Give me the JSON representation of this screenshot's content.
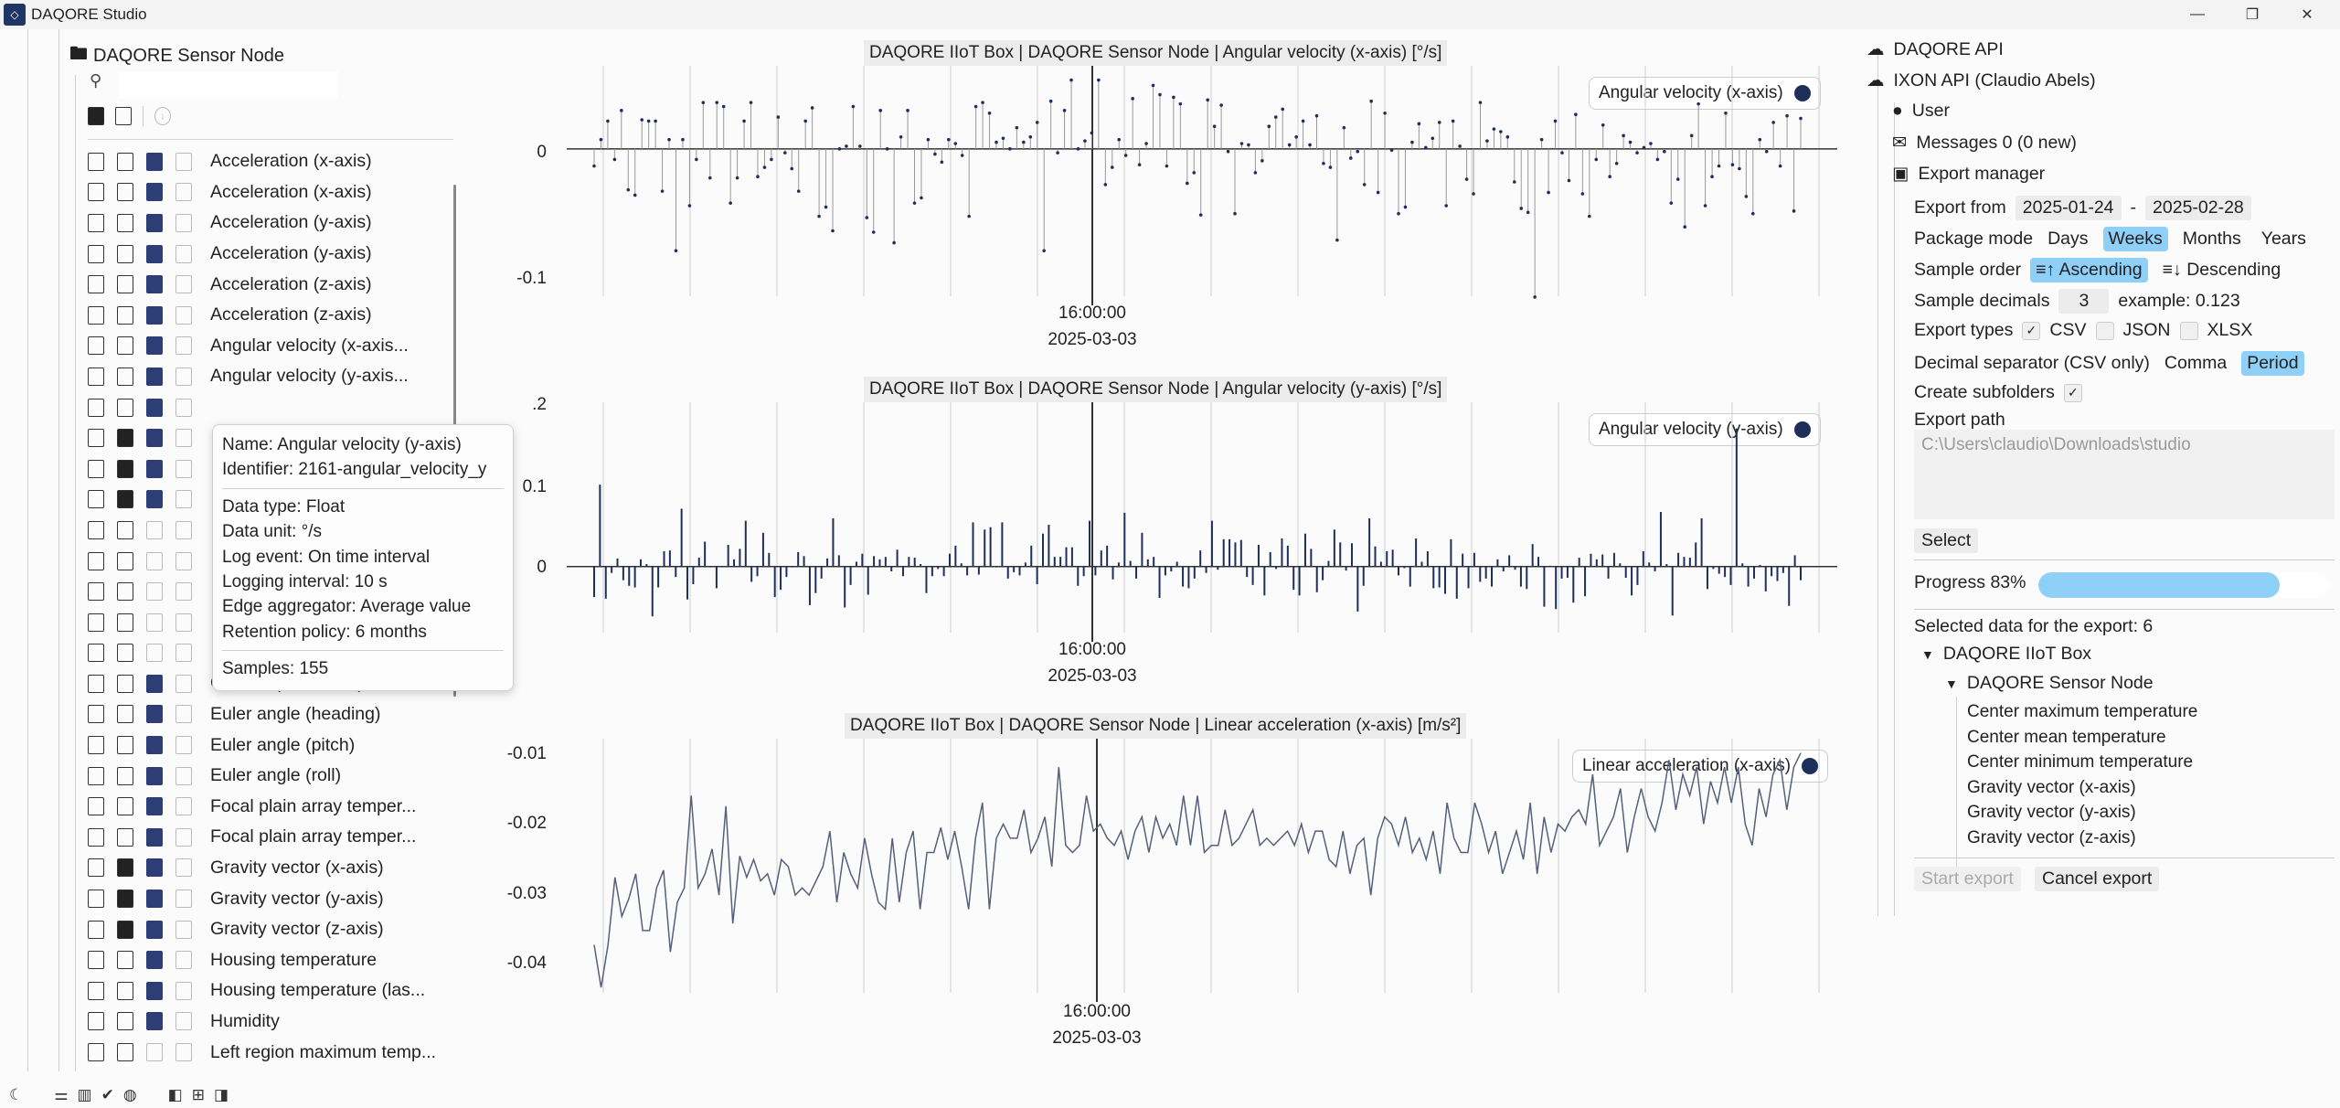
{
  "app": {
    "title": "DAQORE Studio"
  },
  "tree": {
    "root_label": "DAQORE Sensor Node",
    "search_placeholder": ""
  },
  "signals": [
    {
      "label": "Acceleration (x-axis)",
      "icons": [
        "doc",
        "doc",
        "blue",
        "gray"
      ]
    },
    {
      "label": "Acceleration (x-axis)",
      "icons": [
        "doc",
        "doc",
        "blue",
        "gray"
      ]
    },
    {
      "label": "Acceleration (y-axis)",
      "icons": [
        "doc",
        "doc",
        "blue",
        "gray"
      ]
    },
    {
      "label": "Acceleration (y-axis)",
      "icons": [
        "doc",
        "doc",
        "blue",
        "gray"
      ]
    },
    {
      "label": "Acceleration (z-axis)",
      "icons": [
        "doc",
        "doc",
        "blue",
        "gray"
      ]
    },
    {
      "label": "Acceleration (z-axis)",
      "icons": [
        "doc",
        "doc",
        "blue",
        "gray"
      ]
    },
    {
      "label": "Angular velocity (x-axis...",
      "icons": [
        "doc",
        "doc",
        "blue",
        "gray"
      ]
    },
    {
      "label": "Angular velocity (y-axis...",
      "icons": [
        "doc",
        "doc",
        "blue",
        "gray"
      ]
    },
    {
      "label": "",
      "icons": [
        "doc",
        "doc",
        "blue",
        "gray"
      ]
    },
    {
      "label": "",
      "icons": [
        "doc",
        "fill",
        "blue",
        "gray"
      ]
    },
    {
      "label": "",
      "icons": [
        "doc",
        "fill",
        "blue",
        "gray"
      ]
    },
    {
      "label": "",
      "icons": [
        "doc",
        "fill",
        "blue",
        "gray"
      ]
    },
    {
      "label": "",
      "icons": [
        "doc",
        "doc",
        "gray",
        "gray"
      ]
    },
    {
      "label": "",
      "icons": [
        "doc",
        "doc",
        "gray",
        "gray"
      ]
    },
    {
      "label": "",
      "icons": [
        "doc",
        "doc",
        "gray",
        "gray"
      ]
    },
    {
      "label": "",
      "icons": [
        "doc",
        "doc",
        "gray",
        "gray"
      ]
    },
    {
      "label": "",
      "icons": [
        "doc",
        "doc",
        "gray",
        "gray"
      ]
    },
    {
      "label": "Current (channel 1)",
      "icons": [
        "doc",
        "doc",
        "blue",
        "gray"
      ]
    },
    {
      "label": "Euler angle (heading)",
      "icons": [
        "doc",
        "doc",
        "blue",
        "gray"
      ]
    },
    {
      "label": "Euler angle (pitch)",
      "icons": [
        "doc",
        "doc",
        "blue",
        "gray"
      ]
    },
    {
      "label": "Euler angle (roll)",
      "icons": [
        "doc",
        "doc",
        "blue",
        "gray"
      ]
    },
    {
      "label": "Focal plain array temper...",
      "icons": [
        "doc",
        "doc",
        "blue",
        "gray"
      ]
    },
    {
      "label": "Focal plain array temper...",
      "icons": [
        "doc",
        "doc",
        "blue",
        "gray"
      ]
    },
    {
      "label": "Gravity vector (x-axis)",
      "icons": [
        "doc",
        "fill",
        "blue",
        "gray"
      ]
    },
    {
      "label": "Gravity vector (y-axis)",
      "icons": [
        "doc",
        "fill",
        "blue",
        "gray"
      ]
    },
    {
      "label": "Gravity vector (z-axis)",
      "icons": [
        "doc",
        "fill",
        "blue",
        "gray"
      ]
    },
    {
      "label": "Housing temperature",
      "icons": [
        "doc",
        "doc",
        "blue",
        "gray"
      ]
    },
    {
      "label": "Housing temperature (las...",
      "icons": [
        "doc",
        "doc",
        "blue",
        "gray"
      ]
    },
    {
      "label": "Humidity",
      "icons": [
        "doc",
        "doc",
        "blue",
        "gray"
      ]
    },
    {
      "label": "Left region maximum temp...",
      "icons": [
        "doc",
        "doc",
        "gray",
        "gray"
      ]
    }
  ],
  "tooltip": {
    "name": "Name: Angular velocity (y-axis)",
    "identifier": "Identifier: 2161-angular_velocity_y",
    "data_type": "Data type: Float",
    "data_unit": "Data unit: °/s",
    "log_event": "Log event: On time interval",
    "logging_interval": "Logging interval: 10 s",
    "edge_aggregator": "Edge aggregator: Average value",
    "retention_policy": "Retention policy: 6 months",
    "samples": "Samples: 155"
  },
  "charts": [
    {
      "title": "DAQORE IIoT Box | DAQORE Sensor Node | Angular velocity (x-axis) [°/s]",
      "legend": "Angular velocity (x-axis)",
      "xtick_time": "16:00:00",
      "xtick_date": "2025-03-03",
      "yticks": [
        "0",
        "-0.1"
      ]
    },
    {
      "title": "DAQORE IIoT Box | DAQORE Sensor Node | Angular velocity (y-axis) [°/s]",
      "legend": "Angular velocity (y-axis)",
      "xtick_time": "16:00:00",
      "xtick_date": "2025-03-03",
      "yticks": [
        ".2",
        "0.1",
        "0"
      ]
    },
    {
      "title": "DAQORE IIoT Box | DAQORE Sensor Node | Linear acceleration (x-axis) [m/s²]",
      "legend": "Linear acceleration (x-axis)",
      "xtick_time": "16:00:00",
      "xtick_date": "2025-03-03",
      "yticks": [
        "-0.01",
        "-0.02",
        "-0.03",
        "-0.04"
      ]
    }
  ],
  "chart_data": [
    {
      "type": "scatter",
      "title": "DAQORE IIoT Box | DAQORE Sensor Node | Angular velocity (x-axis) [°/s]",
      "xlabel": "",
      "ylabel": "",
      "ylim": [
        -0.11,
        0.06
      ],
      "series": [
        {
          "name": "Angular velocity (x-axis)",
          "values": [
            -0.013,
            0.007,
            0.021,
            -0.008,
            0.029,
            -0.031,
            -0.035,
            0.022,
            0.021,
            0.021,
            -0.032,
            0.007,
            -0.077,
            0.007,
            -0.043,
            -0.008,
            0.035,
            -0.022,
            0.035,
            0.032,
            -0.041,
            -0.022,
            0.021,
            0.035,
            -0.021,
            -0.014,
            -0.008,
            0.024,
            -0.003,
            -0.015,
            -0.032,
            0.021,
            0.031,
            -0.051,
            -0.044,
            -0.062,
            0.0,
            0.002,
            0.032,
            0.002,
            -0.052,
            -0.063,
            0.029,
            0.0,
            -0.071,
            0.009,
            0.029,
            -0.041,
            -0.037,
            0.007,
            -0.004,
            -0.01,
            0.007,
            0.004,
            -0.005,
            -0.051,
            0.032,
            0.035,
            0.027,
            0.005,
            0.008,
            0.0,
            0.016,
            0.005,
            0.009,
            0.02,
            -0.077,
            0.036,
            -0.003,
            0.029,
            0.052,
            0.0,
            0.006,
            0.012,
            0.052,
            -0.027,
            -0.014,
            0.007,
            -0.005,
            0.038,
            -0.012,
            0.004,
            0.048,
            0.041,
            -0.013,
            0.039,
            0.034,
            -0.026,
            -0.018,
            -0.05,
            0.037,
            0.017,
            0.033,
            -0.002,
            -0.049,
            0.004,
            0.003,
            -0.018,
            -0.009,
            0.017,
            0.024,
            0.03,
            0.003,
            0.009,
            0.021,
            0.003,
            0.025,
            -0.011,
            -0.014,
            -0.069,
            0.016,
            -0.007,
            -0.002,
            -0.027,
            0.036,
            -0.033,
            0.027,
            -0.001,
            -0.049,
            -0.044,
            0.005,
            0.019,
            0.001,
            0.008,
            0.02,
            -0.043,
            0.021,
            0.002,
            -0.023,
            -0.034,
            0.035,
            0.006,
            0.015,
            0.013,
            0.009,
            -0.025,
            -0.045,
            -0.048,
            -0.112,
            0.007,
            -0.033,
            0.021,
            -0.003,
            -0.024,
            0.026,
            -0.034,
            -0.051,
            -0.008,
            0.018,
            -0.021,
            -0.011,
            0.01,
            0.005,
            -0.003,
            0.001,
            0.004,
            -0.008,
            -0.002,
            -0.041,
            -0.023,
            -0.059,
            0.01,
            0.034,
            -0.043,
            -0.021,
            -0.013,
            0.027,
            -0.012,
            -0.015,
            -0.036,
            -0.049,
            0.007,
            -0.002,
            0.02,
            -0.013,
            0.025,
            -0.047,
            0.023
          ]
        }
      ]
    },
    {
      "type": "bar",
      "title": "DAQORE IIoT Box | DAQORE Sensor Node | Angular velocity (y-axis) [°/s]",
      "xlabel": "",
      "ylabel": "",
      "ylim": [
        -0.08,
        0.2
      ],
      "series": [
        {
          "name": "Angular velocity (y-axis)",
          "values": [
            -0.038,
            0.102,
            -0.04,
            -0.008,
            0.01,
            -0.017,
            -0.024,
            -0.026,
            0.009,
            0.003,
            -0.062,
            -0.026,
            0.019,
            0.02,
            -0.013,
            0.072,
            -0.041,
            -0.022,
            0.011,
            0.031,
            -0.001,
            -0.027,
            -0.001,
            0.027,
            0.009,
            0.022,
            0.057,
            -0.019,
            -0.012,
            0.042,
            0.017,
            -0.038,
            -0.029,
            -0.013,
            -0.001,
            0.018,
            0.013,
            -0.048,
            -0.033,
            -0.015,
            0.01,
            0.06,
            0.014,
            -0.051,
            -0.023,
            0.006,
            0.016,
            -0.035,
            0.013,
            0.009,
            0.012,
            -0.006,
            0.021,
            -0.012,
            0.012,
            0.011,
            0.003,
            -0.033,
            -0.012,
            -0.003,
            -0.012,
            0.016,
            0.026,
            0.004,
            -0.011,
            0.055,
            -0.01,
            0.046,
            0.049,
            -0.001,
            0.055,
            -0.015,
            -0.007,
            -0.011,
            0.005,
            0.026,
            -0.022,
            0.041,
            0.052,
            0.012,
            0.012,
            0.024,
            0.024,
            -0.024,
            -0.012,
            0.057,
            -0.011,
            0.02,
            0.026,
            -0.016,
            0.005,
            0.067,
            0.007,
            -0.015,
            0.042,
            0.009,
            0.012,
            -0.039,
            -0.011,
            -0.006,
            0.006,
            -0.025,
            -0.027,
            -0.015,
            0.02,
            -0.008,
            0.057,
            -0.004,
            0.034,
            0.034,
            0.03,
            0.033,
            -0.013,
            -0.023,
            0.027,
            -0.036,
            0.018,
            -0.003,
            0.035,
            0.026,
            -0.029,
            -0.036,
            0.041,
            0.022,
            -0.032,
            -0.017,
            0.007,
            0.046,
            0.03,
            -0.005,
            0.029,
            -0.056,
            -0.024,
            0.06,
            0.025,
            0.006,
            0.019,
            0.021,
            -0.011,
            -0.002,
            -0.025,
            0.035,
            0.006,
            0.019,
            -0.027,
            -0.026,
            -0.034,
            0.034,
            -0.04,
            0.016,
            -0.027,
            0.017,
            -0.019,
            -0.015,
            -0.025,
            0.009,
            -0.006,
            0.014,
            -0.004,
            -0.025,
            -0.028,
            0.028,
            0.012,
            -0.05,
            0.001,
            -0.053,
            -0.015,
            -0.014,
            -0.045,
            0.011,
            -0.037,
            0.016,
            0.009,
            0.015,
            -0.015,
            0.017,
            0.004,
            -0.014,
            -0.036,
            -0.023,
            0.019,
            0.005,
            -0.006,
            0.068,
            0.003,
            -0.061,
            0.017,
            0.012,
            0.011,
            0.03,
            0.06,
            -0.028,
            -0.003,
            -0.009,
            -0.013,
            -0.023,
            0.172,
            0.004,
            -0.025,
            -0.015,
            0.002,
            -0.031,
            -0.012,
            -0.018,
            -0.008,
            -0.049,
            0.014,
            -0.017
          ]
        }
      ]
    },
    {
      "type": "line",
      "title": "DAQORE IIoT Box | DAQORE Sensor Node | Linear acceleration (x-axis) [m/s²]",
      "xlabel": "",
      "ylabel": "",
      "ylim": [
        -0.044,
        -0.009
      ],
      "series": [
        {
          "name": "Linear acceleration (x-axis)",
          "values": [
            -0.0375,
            -0.0435,
            -0.0375,
            -0.028,
            -0.0335,
            -0.031,
            -0.0275,
            -0.0355,
            -0.0355,
            -0.0295,
            -0.027,
            -0.0385,
            -0.0315,
            -0.0295,
            -0.0165,
            -0.0295,
            -0.0275,
            -0.024,
            -0.0305,
            -0.018,
            -0.0345,
            -0.025,
            -0.028,
            -0.0255,
            -0.0285,
            -0.0275,
            -0.0305,
            -0.0255,
            -0.0265,
            -0.0305,
            -0.0295,
            -0.0305,
            -0.0285,
            -0.0265,
            -0.0215,
            -0.0315,
            -0.0245,
            -0.0275,
            -0.0295,
            -0.0225,
            -0.0275,
            -0.0315,
            -0.0325,
            -0.0225,
            -0.0315,
            -0.0245,
            -0.0215,
            -0.0325,
            -0.0245,
            -0.0245,
            -0.021,
            -0.0255,
            -0.0215,
            -0.0265,
            -0.0325,
            -0.0225,
            -0.0175,
            -0.0325,
            -0.0225,
            -0.0205,
            -0.0225,
            -0.0225,
            -0.0185,
            -0.0245,
            -0.0225,
            -0.0195,
            -0.0265,
            -0.0125,
            -0.0235,
            -0.0245,
            -0.0235,
            -0.0165,
            -0.0215,
            -0.0205,
            -0.0225,
            -0.0235,
            -0.0215,
            -0.0255,
            -0.0215,
            -0.0195,
            -0.0245,
            -0.0195,
            -0.0225,
            -0.0205,
            -0.0235,
            -0.0165,
            -0.0235,
            -0.0165,
            -0.0245,
            -0.0235,
            -0.0235,
            -0.0185,
            -0.0235,
            -0.0225,
            -0.0205,
            -0.0185,
            -0.0235,
            -0.0225,
            -0.0235,
            -0.0225,
            -0.0215,
            -0.0235,
            -0.0205,
            -0.0245,
            -0.0215,
            -0.0215,
            -0.0255,
            -0.0265,
            -0.0215,
            -0.0275,
            -0.0235,
            -0.0225,
            -0.0305,
            -0.0225,
            -0.0195,
            -0.0205,
            -0.0235,
            -0.0195,
            -0.0245,
            -0.0225,
            -0.0255,
            -0.0215,
            -0.0275,
            -0.0175,
            -0.0225,
            -0.0245,
            -0.0245,
            -0.0175,
            -0.0205,
            -0.0245,
            -0.0215,
            -0.0275,
            -0.0245,
            -0.0215,
            -0.0255,
            -0.0175,
            -0.0275,
            -0.0195,
            -0.0245,
            -0.0205,
            -0.0215,
            -0.0195,
            -0.0185,
            -0.0205,
            -0.0135,
            -0.0235,
            -0.0215,
            -0.0195,
            -0.0155,
            -0.0245,
            -0.0195,
            -0.0155,
            -0.0195,
            -0.0215,
            -0.0175,
            -0.0115,
            -0.0185,
            -0.0135,
            -0.0165,
            -0.0125,
            -0.0205,
            -0.0145,
            -0.0175,
            -0.0125,
            -0.0175,
            -0.0125,
            -0.0205,
            -0.0235,
            -0.0155,
            -0.0195,
            -0.0135,
            -0.0115,
            -0.0185,
            -0.0125,
            -0.0105
          ]
        }
      ]
    }
  ],
  "api": {
    "title": "DAQORE API",
    "account": "IXON API (Claudio Abels)",
    "user": "User",
    "messages": "Messages 0 (0 new)",
    "export_manager": "Export manager"
  },
  "export": {
    "from_label": "Export from",
    "from_date": "2025-01-24",
    "dash": "-",
    "to_date": "2025-02-28",
    "package_label": "Package mode",
    "package_options": [
      "Days",
      "Weeks",
      "Months",
      "Years"
    ],
    "package_selected": "Weeks",
    "order_label": "Sample order",
    "ascending": "Ascending",
    "descending": "Descending",
    "decimals_label": "Sample decimals",
    "decimals_value": "3",
    "decimals_example": "example: 0.123",
    "types_label": "Export types",
    "type_csv": "CSV",
    "type_json": "JSON",
    "type_xlsx": "XLSX",
    "sep_label": "Decimal separator (CSV only)",
    "sep_comma": "Comma",
    "sep_period": "Period",
    "subfolders_label": "Create subfolders",
    "path_label": "Export path",
    "path_value": "C:\\Users\\claudio\\Downloads\\studio",
    "select_label": "Select",
    "progress_label": "Progress 83%",
    "progress": 0.83,
    "selected_label": "Selected data for the export: 6",
    "box_label": "DAQORE IIoT Box",
    "node_label": "DAQORE Sensor Node",
    "items": [
      "Center maximum temperature",
      "Center mean temperature",
      "Center minimum temperature",
      "Gravity vector (x-axis)",
      "Gravity vector (y-axis)",
      "Gravity vector (z-axis)"
    ],
    "start_label": "Start export",
    "cancel_label": "Cancel export"
  },
  "colors": {
    "series": "#1e2f5c",
    "accent": "#8fd0f8"
  }
}
